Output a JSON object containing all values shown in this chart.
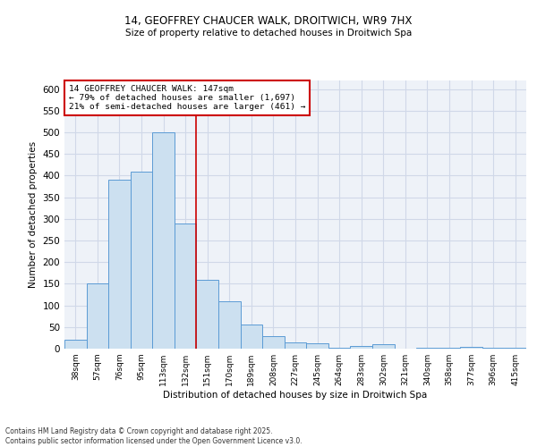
{
  "title_line1": "14, GEOFFREY CHAUCER WALK, DROITWICH, WR9 7HX",
  "title_line2": "Size of property relative to detached houses in Droitwich Spa",
  "xlabel": "Distribution of detached houses by size in Droitwich Spa",
  "ylabel": "Number of detached properties",
  "footnote": "Contains HM Land Registry data © Crown copyright and database right 2025.\nContains public sector information licensed under the Open Government Licence v3.0.",
  "bin_labels": [
    "38sqm",
    "57sqm",
    "76sqm",
    "95sqm",
    "113sqm",
    "132sqm",
    "151sqm",
    "170sqm",
    "189sqm",
    "208sqm",
    "227sqm",
    "245sqm",
    "264sqm",
    "283sqm",
    "302sqm",
    "321sqm",
    "340sqm",
    "358sqm",
    "377sqm",
    "396sqm",
    "415sqm"
  ],
  "bar_values": [
    20,
    150,
    390,
    410,
    500,
    290,
    160,
    110,
    55,
    28,
    15,
    12,
    3,
    7,
    10,
    0,
    3,
    2,
    5,
    2,
    3
  ],
  "bar_color": "#cce0f0",
  "bar_edge_color": "#5b9bd5",
  "grid_color": "#d0d8e8",
  "background_color": "#eef2f8",
  "annotation_text": "14 GEOFFREY CHAUCER WALK: 147sqm\n← 79% of detached houses are smaller (1,697)\n21% of semi-detached houses are larger (461) →",
  "vline_position": 5.5,
  "annotation_box_color": "#ffffff",
  "annotation_box_edge_color": "#cc0000",
  "ylim": [
    0,
    620
  ],
  "yticks": [
    0,
    50,
    100,
    150,
    200,
    250,
    300,
    350,
    400,
    450,
    500,
    550,
    600
  ],
  "fig_width": 6.0,
  "fig_height": 5.0,
  "dpi": 100
}
